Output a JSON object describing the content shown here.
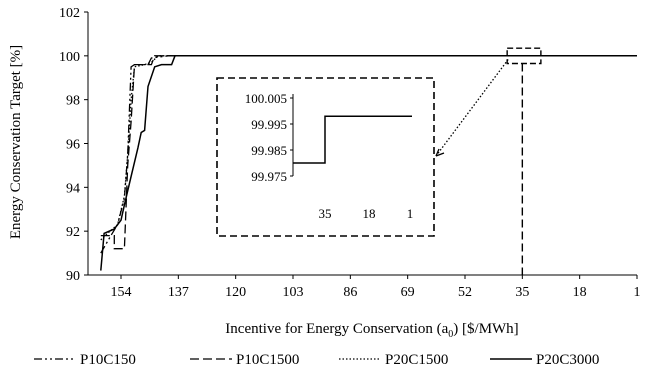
{
  "chart_data": {
    "type": "line",
    "xlabel_main": "Incentive for Energy Conservation (a",
    "xlabel_sub": "0",
    "xlabel_tail": ") [$/MWh]",
    "ylabel": "Energy Conservation Target [%]",
    "x_reversed": true,
    "xlim": [
      160,
      1
    ],
    "ylim": [
      90,
      102
    ],
    "x_ticks": [
      "154",
      "137",
      "120",
      "103",
      "86",
      "69",
      "52",
      "35",
      "18",
      "1"
    ],
    "y_ticks": [
      "90",
      "92",
      "94",
      "96",
      "98",
      "100",
      "102"
    ],
    "grid": false,
    "legend_position": "bottom",
    "series": [
      {
        "name": "P10C150",
        "dash": "dash-dot-dot",
        "points": [
          [
            160,
            91.0
          ],
          [
            157,
            91.8
          ],
          [
            155,
            92.3
          ],
          [
            153,
            93.5
          ],
          [
            152,
            95.5
          ],
          [
            151.5,
            97.5
          ],
          [
            151,
            99.5
          ],
          [
            150,
            99.6
          ],
          [
            146,
            99.6
          ],
          [
            145,
            99.9
          ],
          [
            140,
            100
          ],
          [
            1,
            100
          ]
        ]
      },
      {
        "name": "P10C1500",
        "dash": "long-dash",
        "points": [
          [
            160,
            91.8
          ],
          [
            156,
            91.8
          ],
          [
            156,
            91.2
          ],
          [
            153,
            91.2
          ],
          [
            152,
            95.0
          ],
          [
            151,
            97.0
          ],
          [
            150,
            99.6
          ],
          [
            149,
            99.6
          ],
          [
            145,
            99.6
          ],
          [
            144,
            100
          ],
          [
            1,
            100
          ]
        ]
      },
      {
        "name": "P20C1500",
        "dash": "dot",
        "points": [
          [
            160,
            91.6
          ],
          [
            158,
            91.9
          ],
          [
            155,
            92.3
          ],
          [
            153,
            93.6
          ],
          [
            152,
            95.5
          ],
          [
            151,
            98.0
          ],
          [
            150,
            99.5
          ],
          [
            147,
            99.6
          ],
          [
            145,
            99.7
          ],
          [
            143,
            100
          ],
          [
            1,
            100
          ]
        ]
      },
      {
        "name": "P20C3000",
        "dash": "solid",
        "points": [
          [
            160,
            90.2
          ],
          [
            159,
            91.9
          ],
          [
            156,
            92.1
          ],
          [
            154,
            92.5
          ],
          [
            153,
            93.2
          ],
          [
            151,
            94.5
          ],
          [
            149,
            95.8
          ],
          [
            148,
            96.5
          ],
          [
            147,
            96.6
          ],
          [
            146,
            98.6
          ],
          [
            144,
            99.5
          ],
          [
            142,
            99.6
          ],
          [
            139,
            99.6
          ],
          [
            138,
            100
          ],
          [
            1,
            100
          ]
        ]
      }
    ],
    "inset": {
      "y_ticks": [
        "100.005",
        "99.995",
        "99.985",
        "99.975"
      ],
      "x_ticks": [
        "35",
        "18",
        "1"
      ],
      "ylim": [
        99.975,
        100.005
      ],
      "step_before": 99.98,
      "step_after": 99.998,
      "step_at": 35
    }
  }
}
